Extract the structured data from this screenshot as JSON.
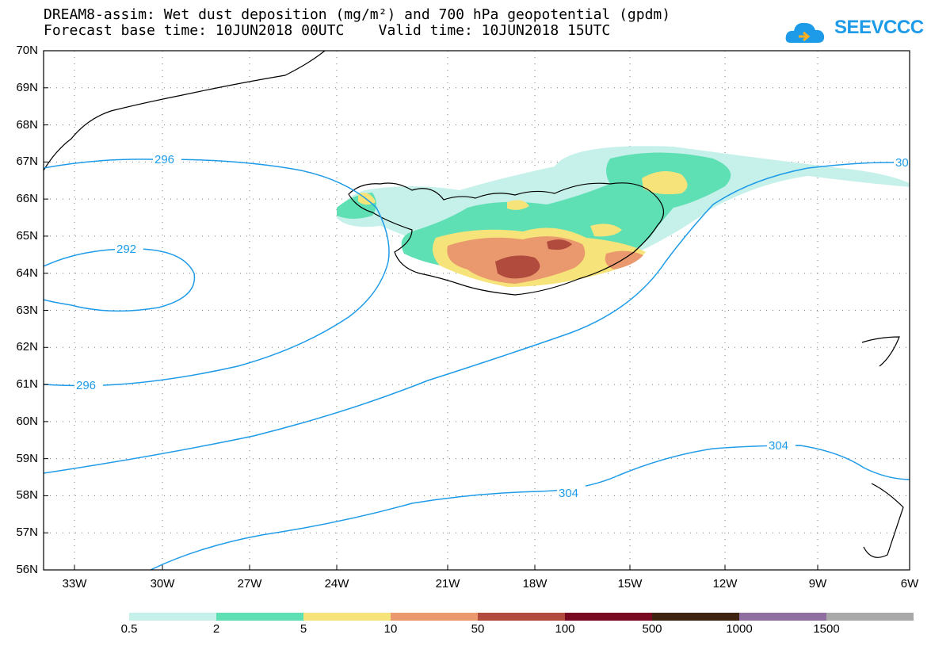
{
  "header": {
    "title_line1": "DREAM8-assim: Wet dust deposition (mg/m²) and 700 hPa geopotential (gpdm)",
    "title_line2": "Forecast base time: 10JUN2018 00UTC    Valid time: 10JUN2018 15UTC"
  },
  "logo": {
    "text": "SEEVCCC",
    "color": "#1e9be8"
  },
  "map": {
    "latitudes": [
      "70N",
      "69N",
      "68N",
      "67N",
      "66N",
      "65N",
      "64N",
      "63N",
      "62N",
      "61N",
      "60N",
      "59N",
      "58N",
      "57N",
      "56N"
    ],
    "longitudes": [
      "33W",
      "30W",
      "27W",
      "24W",
      "21W",
      "18W",
      "15W",
      "12W",
      "9W",
      "6W"
    ],
    "contour_color": "#1e9be8",
    "contour_labels": [
      "296",
      "292",
      "296",
      "304",
      "304",
      "30"
    ]
  },
  "colorbar": {
    "labels": [
      "0.5",
      "2",
      "5",
      "10",
      "50",
      "100",
      "500",
      "1000",
      "1500"
    ],
    "colors": [
      "#c6f1ea",
      "#5fe0b4",
      "#f6e47a",
      "#e9996d",
      "#b04b3e",
      "#7a0a22",
      "#3d2310",
      "#8e6fa0",
      "#a9a9a9"
    ]
  }
}
